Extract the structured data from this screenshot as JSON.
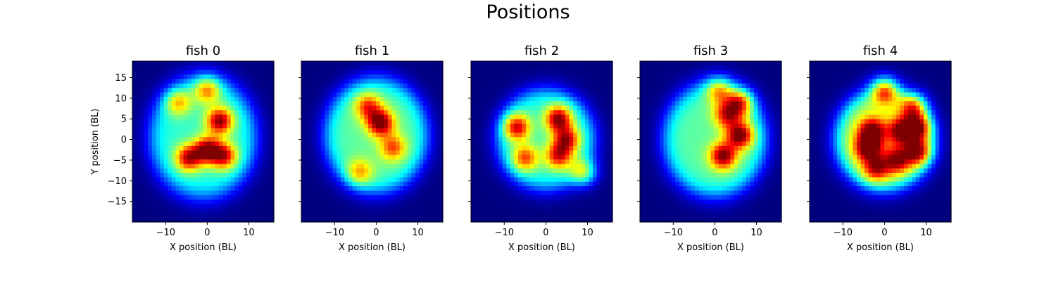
{
  "figure_title": "Positions",
  "chart_data": {
    "type": "heatmap",
    "title": "Positions",
    "colormap": "jet",
    "colormap_stops": [
      "#00007f",
      "#0000ff",
      "#00ffff",
      "#ffff00",
      "#ff0000",
      "#7f0000"
    ],
    "xlabel": "X position (BL)",
    "ylabel": "Y position (BL)",
    "xlim": [
      -18,
      16
    ],
    "ylim": [
      -20,
      19
    ],
    "xticks": [
      -10,
      0,
      10
    ],
    "xtick_labels": [
      "−10",
      "0",
      "10"
    ],
    "yticks": [
      15,
      10,
      5,
      0,
      -5,
      -10,
      -15
    ],
    "ytick_labels": [
      "15",
      "10",
      "5",
      "0",
      "−5",
      "−10",
      "−15"
    ],
    "sharey": true,
    "panels": [
      {
        "title": "fish 0",
        "arena": {
          "cx": -1,
          "cy": 0.5,
          "rx": 12.5,
          "ry": 14.5,
          "level": 0.4
        },
        "blobs": [
          {
            "x": 3,
            "y": 4.5,
            "v": 1.0
          },
          {
            "x": 0,
            "y": -2.5,
            "v": 1.0
          },
          {
            "x": -4.5,
            "y": -4.5,
            "v": 0.9
          },
          {
            "x": 4,
            "y": -4,
            "v": 0.85
          },
          {
            "x": 0,
            "y": 12,
            "v": 0.65
          },
          {
            "x": -7,
            "y": 9,
            "v": 0.55
          }
        ]
      },
      {
        "title": "fish 1",
        "arena": {
          "cx": 0,
          "cy": 1,
          "rx": 12,
          "ry": 13.5,
          "level": 0.45
        },
        "blobs": [
          {
            "x": 1,
            "y": 4,
            "v": 1.0
          },
          {
            "x": -2,
            "y": 8,
            "v": 0.65
          },
          {
            "x": 4,
            "y": -2,
            "v": 0.6
          },
          {
            "x": -4,
            "y": -8,
            "v": 0.5
          }
        ]
      },
      {
        "title": "fish 2",
        "arena": {
          "cx": 0,
          "cy": 0,
          "rx": 11.5,
          "ry": 12,
          "level": 0.4
        },
        "blobs": [
          {
            "x": 3,
            "y": 5,
            "v": 1.0
          },
          {
            "x": -7,
            "y": 3,
            "v": 0.9
          },
          {
            "x": 5,
            "y": 0,
            "v": 0.85
          },
          {
            "x": -5,
            "y": -4.5,
            "v": 0.7
          },
          {
            "x": 9,
            "y": -8,
            "v": 0.65
          },
          {
            "x": 3,
            "y": -4,
            "v": 0.8
          }
        ]
      },
      {
        "title": "fish 3",
        "arena": {
          "cx": 0,
          "cy": 0,
          "rx": 12,
          "ry": 13.5,
          "level": 0.45
        },
        "blobs": [
          {
            "x": 6,
            "y": 1,
            "v": 1.0
          },
          {
            "x": 2,
            "y": -4,
            "v": 0.95
          },
          {
            "x": 6,
            "y": 9,
            "v": 0.8
          },
          {
            "x": 3,
            "y": 6,
            "v": 0.75
          },
          {
            "x": 1,
            "y": 12,
            "v": 0.6
          }
        ]
      },
      {
        "title": "fish 4",
        "arena": {
          "cx": 0,
          "cy": 0,
          "rx": 11.5,
          "ry": 12,
          "level": 0.55
        },
        "blobs": [
          {
            "x": 0,
            "y": 12,
            "v": 0.85
          },
          {
            "x": -3,
            "y": 2,
            "v": 0.9
          },
          {
            "x": -4,
            "y": -2,
            "v": 0.9
          },
          {
            "x": 4,
            "y": 2,
            "v": 0.85
          },
          {
            "x": 8,
            "y": 3,
            "v": 0.85
          },
          {
            "x": 7,
            "y": 8,
            "v": 0.7
          },
          {
            "x": 8,
            "y": -3,
            "v": 0.85
          },
          {
            "x": 3,
            "y": -5,
            "v": 0.75
          },
          {
            "x": -2,
            "y": -7,
            "v": 0.7
          }
        ]
      }
    ]
  }
}
